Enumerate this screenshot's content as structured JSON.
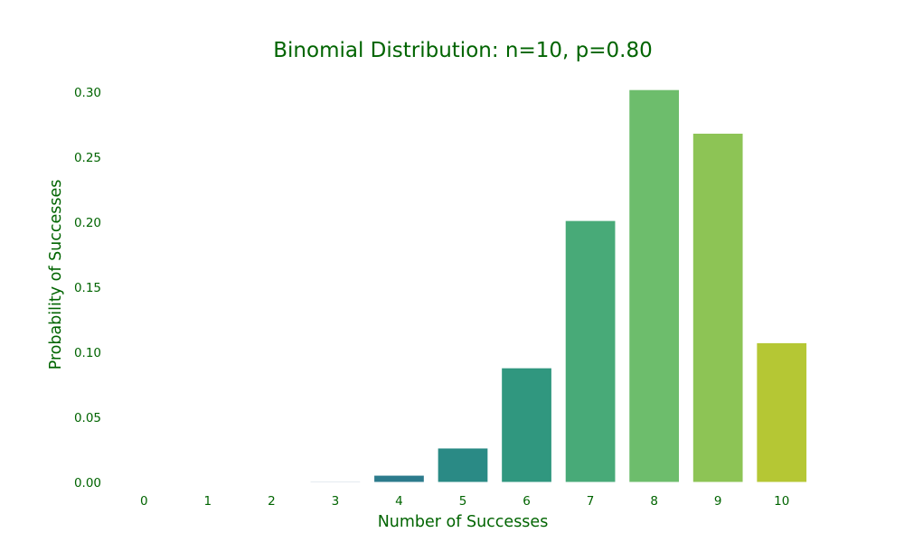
{
  "chart_data": {
    "type": "bar",
    "title": "Binomial Distribution: n=10, p=0.80",
    "xlabel": "Number of Successes",
    "ylabel": "Probability of Successes",
    "categories": [
      "0",
      "1",
      "2",
      "3",
      "4",
      "5",
      "6",
      "7",
      "8",
      "9",
      "10"
    ],
    "values": [
      1e-07,
      4.1e-06,
      7.37e-05,
      0.000786,
      0.005505,
      0.026424,
      0.08808,
      0.201327,
      0.30199,
      0.268435,
      0.107374
    ],
    "ylim": [
      0,
      0.3
    ],
    "yticks": [
      "0.00",
      "0.05",
      "0.10",
      "0.15",
      "0.20",
      "0.25",
      "0.30"
    ],
    "grid": false,
    "colors": {
      "text": "#006400",
      "bars": [
        "#3d1c5e",
        "#452a73",
        "#3f4787",
        "#35608d",
        "#2c7b8c",
        "#2a8a85",
        "#30977f",
        "#48aa78",
        "#6dbd6c",
        "#8dc455",
        "#b5c734"
      ]
    }
  }
}
